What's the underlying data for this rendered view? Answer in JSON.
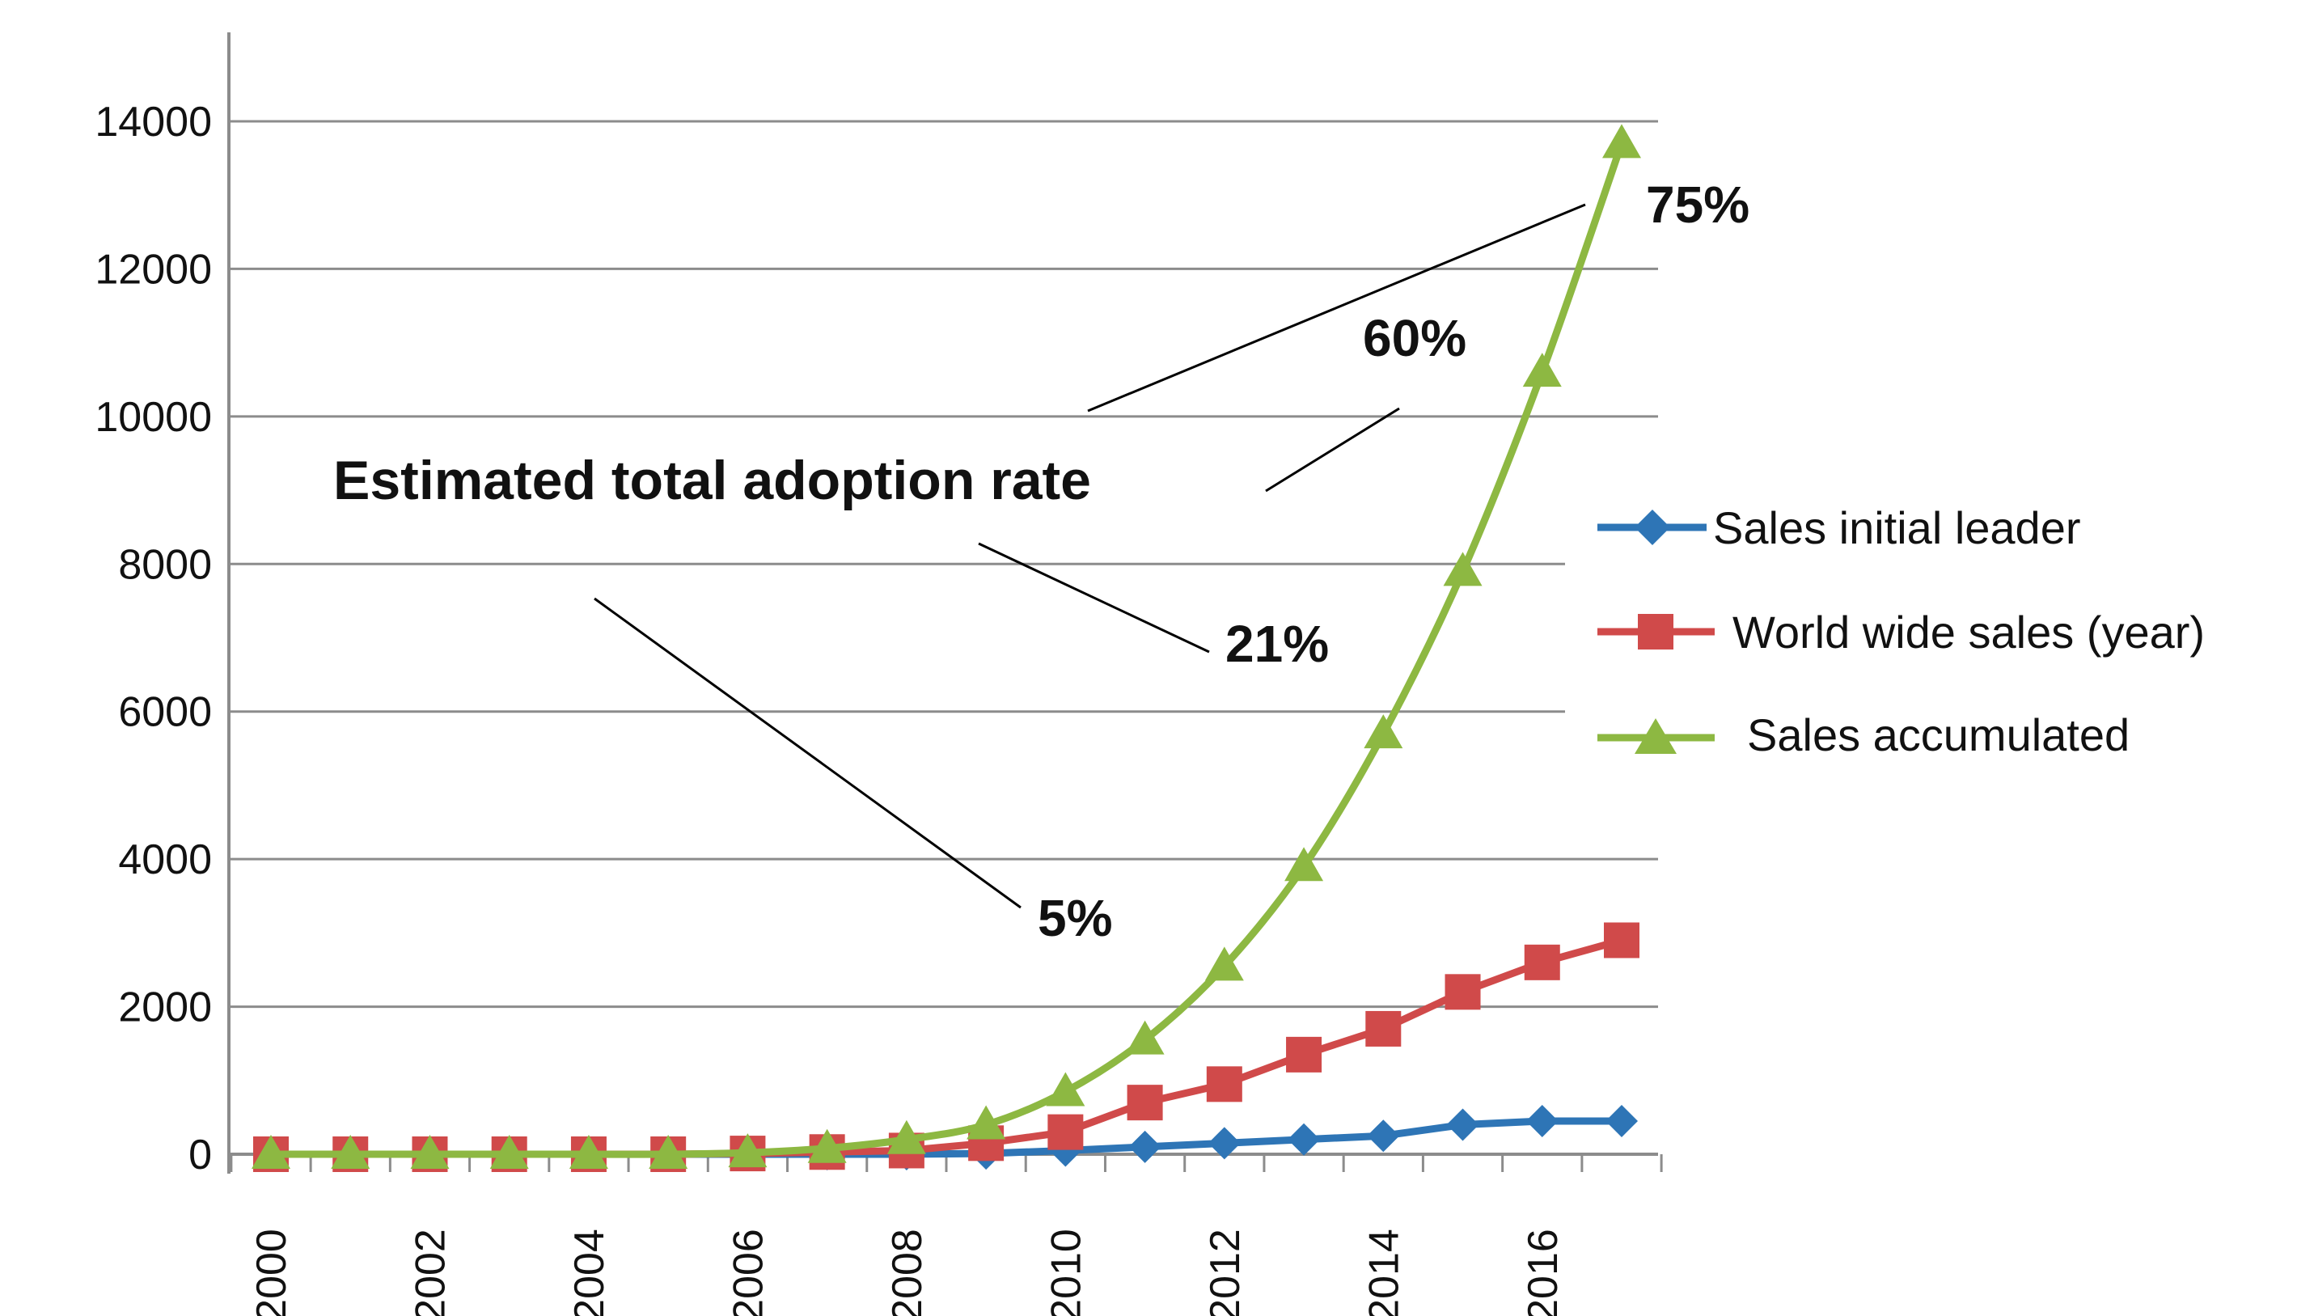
{
  "chart_data": {
    "type": "line",
    "title": "",
    "xlabel": "",
    "ylabel": "",
    "x": [
      2000,
      2001,
      2002,
      2003,
      2004,
      2005,
      2006,
      2007,
      2008,
      2009,
      2010,
      2011,
      2012,
      2013,
      2014,
      2015,
      2016,
      2017
    ],
    "x_tick_labels": [
      "2000",
      "2002",
      "2004",
      "2006",
      "2008",
      "2010",
      "2012",
      "2014",
      "2016"
    ],
    "y_tick_labels": [
      "0",
      "2000",
      "4000",
      "6000",
      "8000",
      "10000",
      "12000",
      "14000"
    ],
    "ylim": [
      0,
      14000
    ],
    "xlim": [
      2000,
      2017
    ],
    "grid": "horizontal",
    "legend_position": "right",
    "series": [
      {
        "name": "Sales initial leader",
        "color": "#2E75B6",
        "marker": "diamond",
        "values": [
          0,
          0,
          0,
          0,
          0,
          0,
          0,
          0,
          0,
          10,
          50,
          100,
          150,
          200,
          250,
          400,
          450,
          450
        ]
      },
      {
        "name": "World wide sales (year)",
        "color": "#D04A4A",
        "marker": "square",
        "values": [
          0,
          0,
          0,
          0,
          0,
          0,
          10,
          30,
          50,
          150,
          300,
          700,
          950,
          1350,
          1700,
          2200,
          2600,
          2900
        ]
      },
      {
        "name": "Sales accumulated",
        "color": "#8DB842",
        "marker": "triangle",
        "values": [
          0,
          0,
          0,
          0,
          0,
          0,
          20,
          80,
          200,
          400,
          850,
          1550,
          2550,
          3900,
          5700,
          7900,
          10600,
          13700
        ]
      }
    ],
    "annotations": {
      "title": "Estimated total adoption rate",
      "labels": [
        "5%",
        "21%",
        "60%",
        "75%"
      ]
    }
  }
}
